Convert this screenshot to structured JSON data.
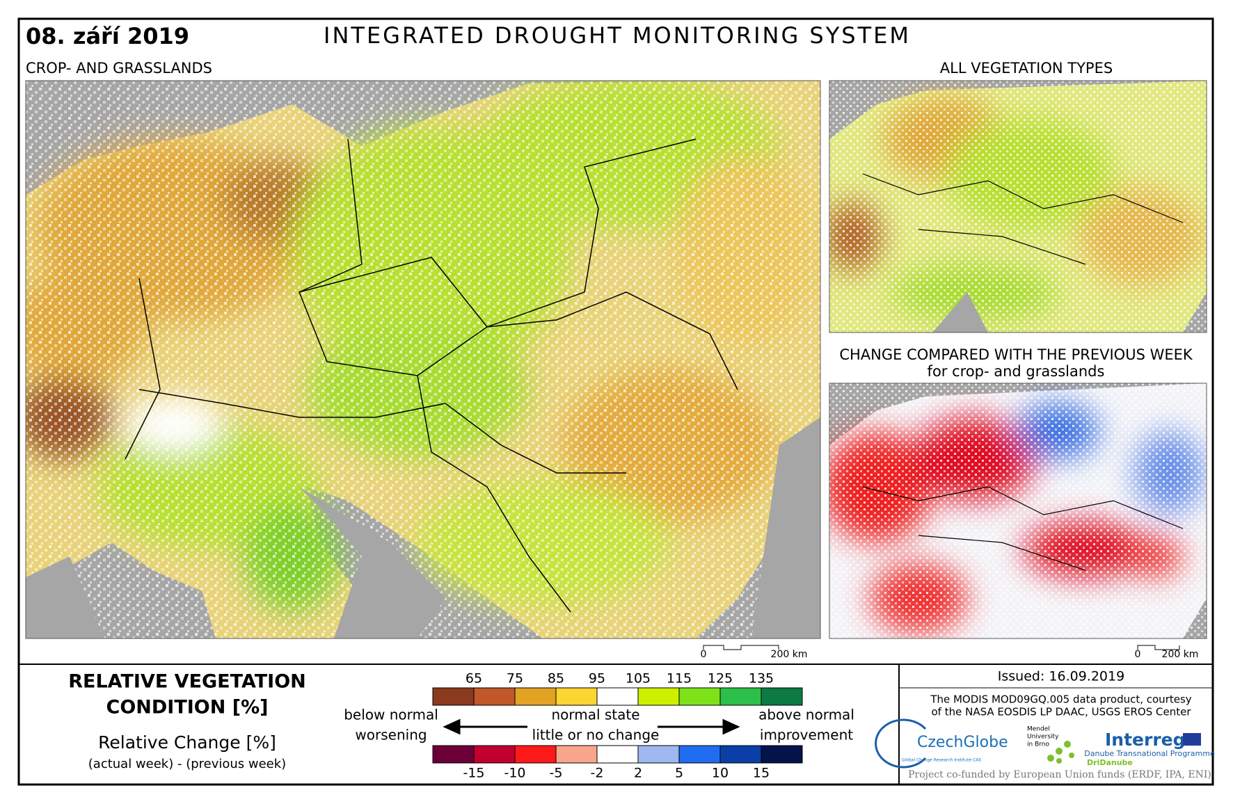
{
  "header": {
    "date": "08. září 2019",
    "title": "INTEGRATED DROUGHT MONITORING SYSTEM"
  },
  "main_map": {
    "label": "CROP- AND GRASSLANDS",
    "scale": [
      "0",
      "200 km"
    ]
  },
  "vegetation_map": {
    "label": "ALL VEGETATION TYPES"
  },
  "change_map": {
    "title": "CHANGE COMPARED WITH THE PREVIOUS WEEK",
    "subtitle": "for crop- and grasslands",
    "scale": [
      "0",
      "200 km"
    ]
  },
  "legend": {
    "title_lines": [
      "RELATIVE VEGETATION",
      "CONDITION [%]"
    ],
    "change_title": "Relative Change [%]",
    "change_subtitle": "(actual week) - (previous week)",
    "condition_ticks": [
      65,
      75,
      85,
      95,
      105,
      115,
      125,
      135
    ],
    "condition_colors": [
      "#8b3a1f",
      "#c0582a",
      "#e3a224",
      "#fbd531",
      "#ffffff",
      "#ccf000",
      "#7de21a",
      "#2cbf4a",
      "#0b7a43"
    ],
    "change_ticks": [
      -15,
      -10,
      -5,
      -2,
      2,
      5,
      10,
      15
    ],
    "change_colors": [
      "#6b0038",
      "#c0002e",
      "#ff1a1a",
      "#f9a58c",
      "#ffffff",
      "#9fb8f0",
      "#1f6cf0",
      "#0a3fa8",
      "#06124a"
    ],
    "below": [
      "below normal",
      "worsening"
    ],
    "normal": [
      "normal state",
      "little or no change"
    ],
    "above": [
      "above normal",
      "improvement"
    ]
  },
  "footer": {
    "issued": "Issued: 16.09.2019",
    "credit": [
      "The MODIS MOD09GQ.005 data product, courtesy",
      "of the NASA EOSDIS LP DAAC, USGS EROS Center"
    ],
    "logos": {
      "czechglobe": "CzechGlobe",
      "czechglobe_sub": "Global Change Research Institute CAS",
      "mendel": [
        "Mendel",
        "University",
        "in Brno"
      ],
      "interreg": "Interreg",
      "interreg_sub": "Danube Transnational Programme",
      "project": "DriDanube"
    },
    "funding": "Project co-funded by European Union funds (ERDF, IPA, ENI)"
  }
}
